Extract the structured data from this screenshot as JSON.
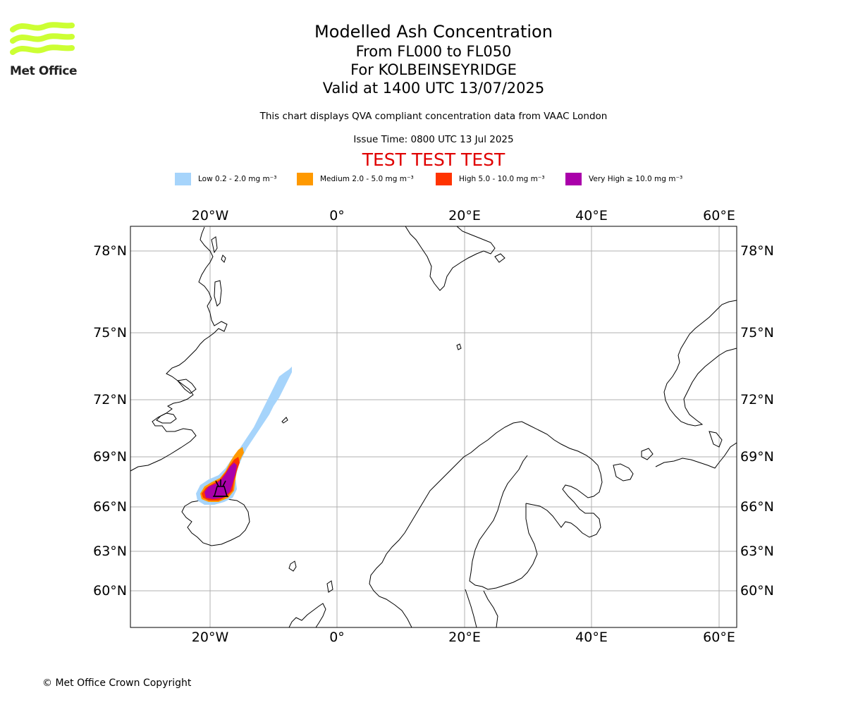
{
  "logo": {
    "text": "Met Office"
  },
  "title": {
    "line1": "Modelled Ash Concentration",
    "line2": "From FL000 to FL050",
    "line3": "For KOLBEINSEYRIDGE",
    "line4": "Valid at 1400 UTC 13/07/2025"
  },
  "subtitle": "This chart displays QVA compliant concentration data from VAAC London",
  "issue_time": "Issue Time: 0800 UTC 13 Jul 2025",
  "test_banner": "TEST TEST TEST",
  "legend": [
    {
      "label": "Low 0.2 - 2.0 mg m⁻³",
      "color": "#a6d4fb"
    },
    {
      "label": "Medium 2.0 - 5.0 mg m⁻³",
      "color": "#ff9900"
    },
    {
      "label": "High 5.0 - 10.0 mg m⁻³",
      "color": "#ff3300"
    },
    {
      "label": "Very High ≥ 10.0 mg m⁻³",
      "color": "#aa00aa"
    }
  ],
  "map": {
    "lon_labels": [
      "20°W",
      "0°",
      "20°E",
      "40°E",
      "60°E"
    ],
    "lat_labels": [
      "78°N",
      "75°N",
      "72°N",
      "69°N",
      "66°N",
      "63°N",
      "60°N"
    ]
  },
  "copyright": "© Met Office Crown Copyright"
}
